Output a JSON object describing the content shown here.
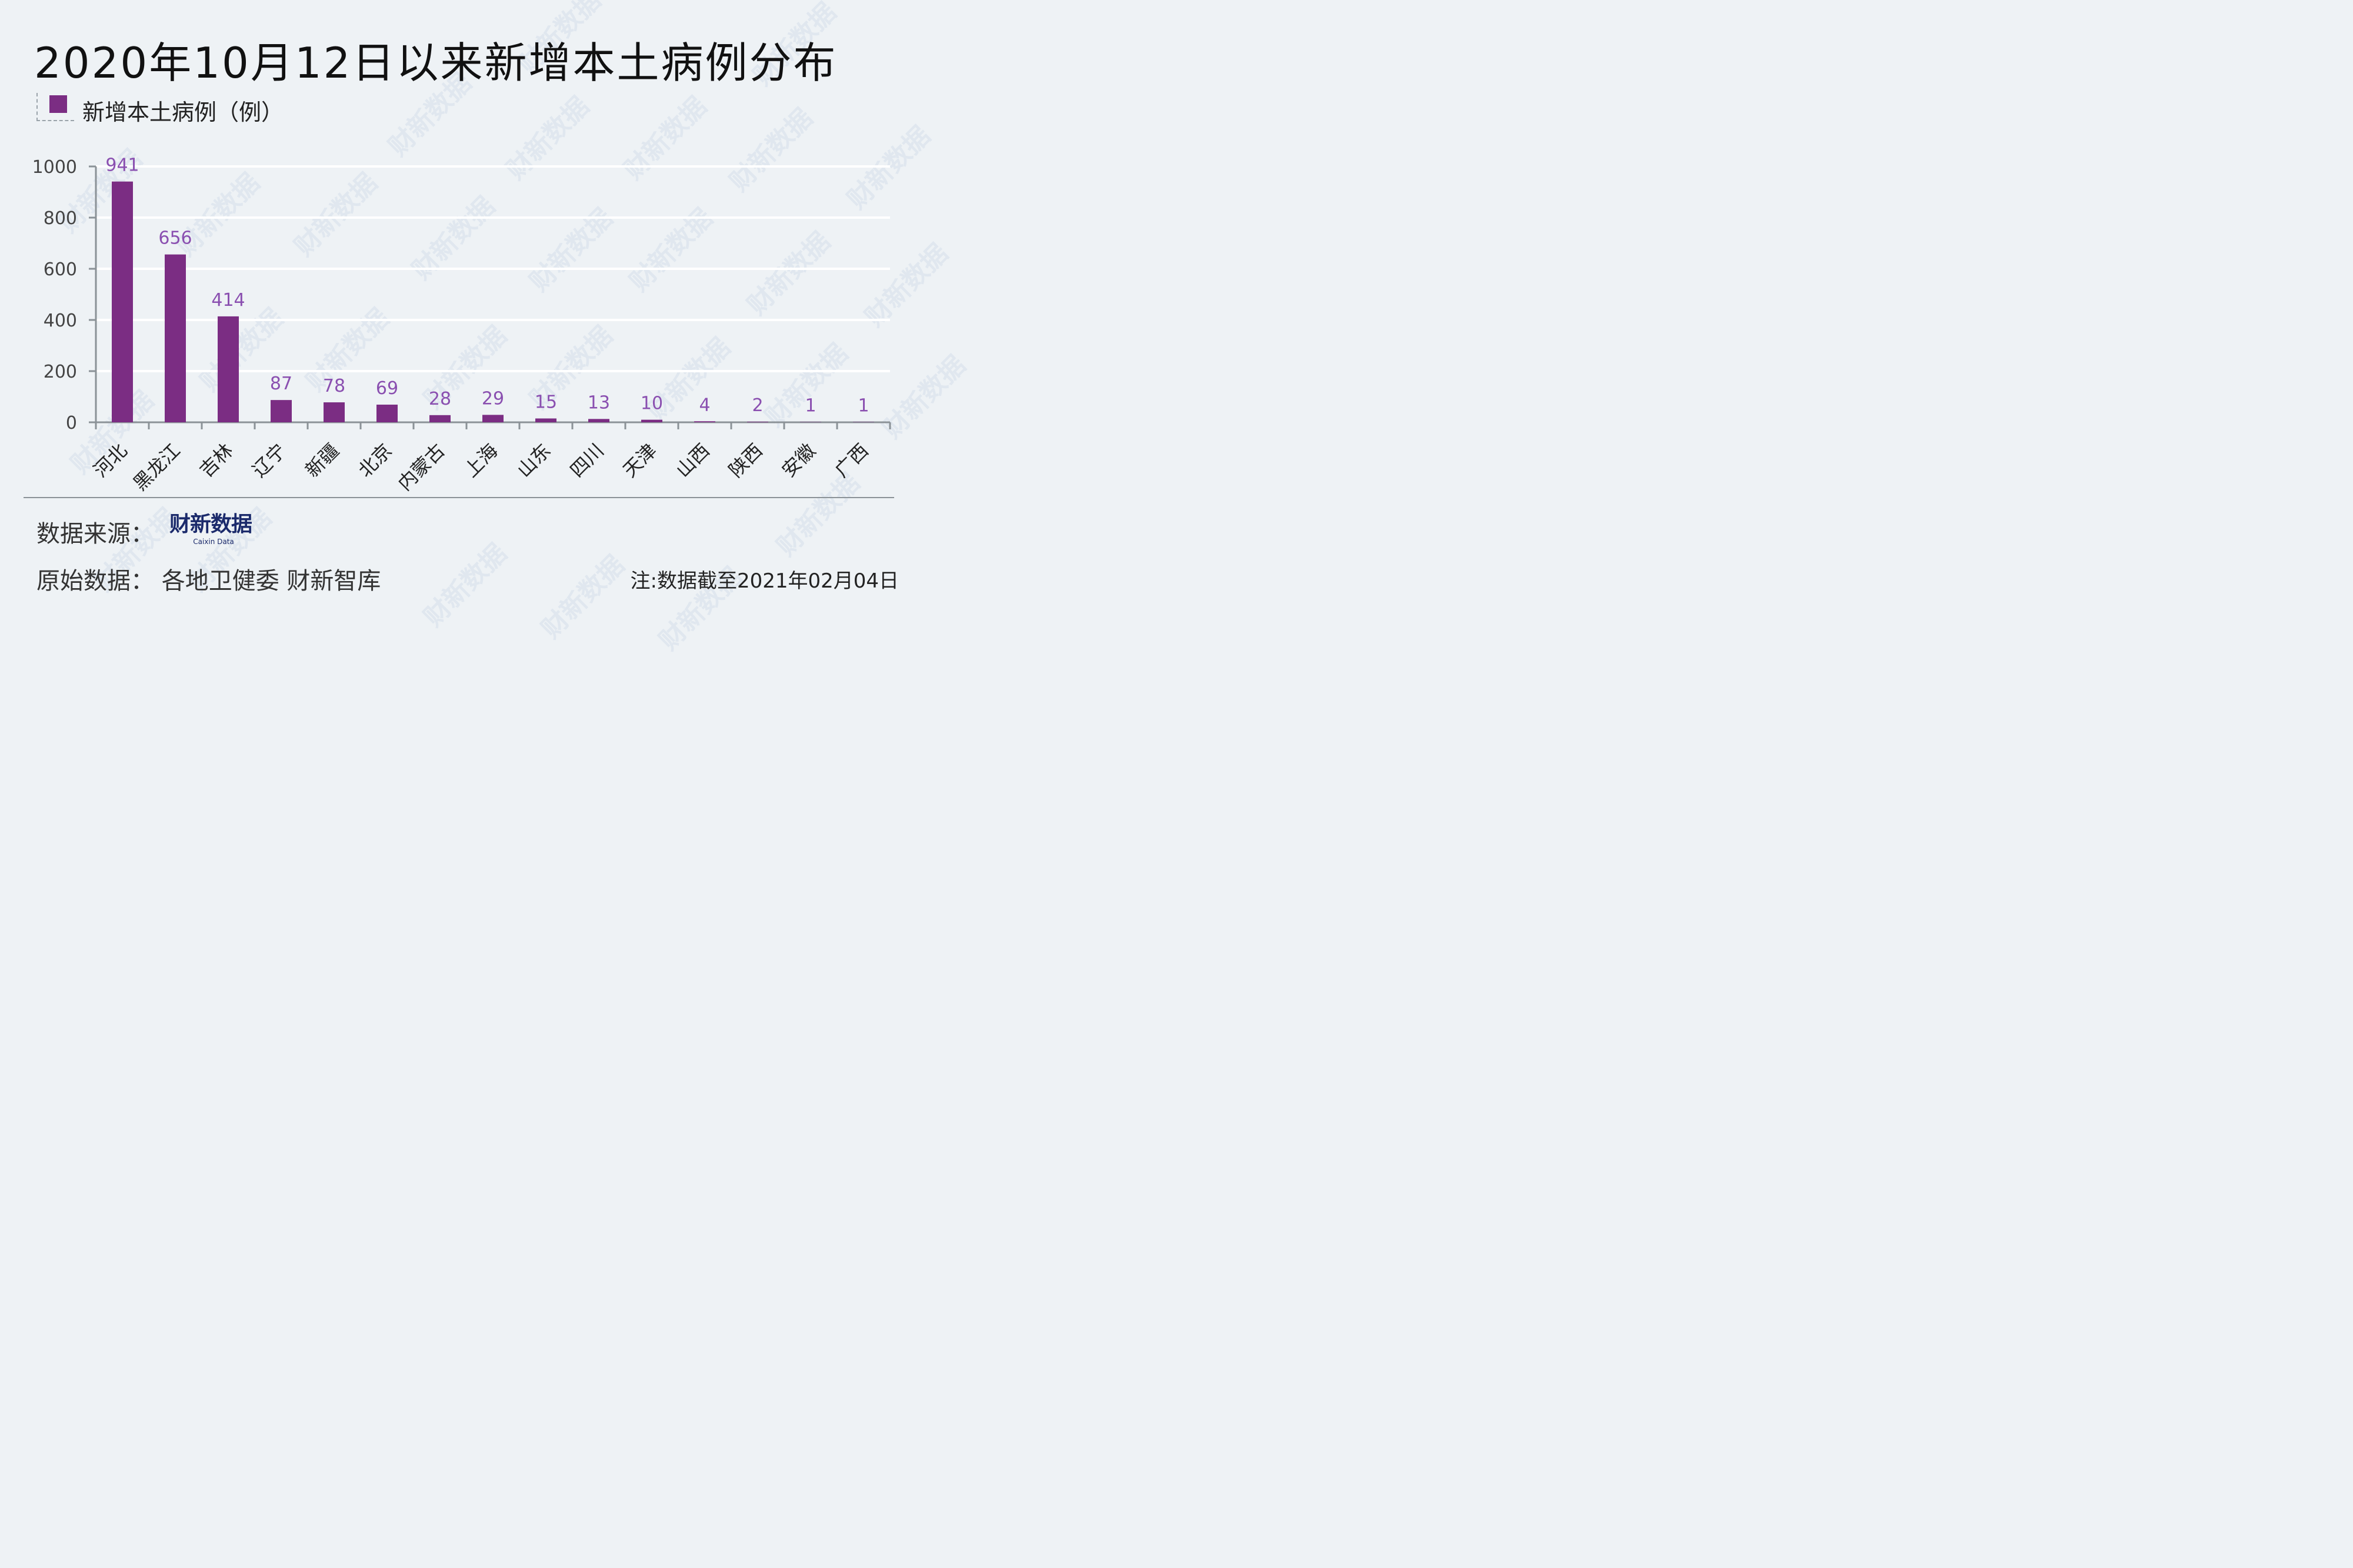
{
  "title": "2020年10月12日以来新增本土病例分布",
  "legend": {
    "label": "新增本土病例（例）"
  },
  "colors": {
    "bar": "#7b2d83",
    "data_label": "#8a4fb0",
    "grid": "#ffffff",
    "axis": "#8b9297",
    "tick_text": "#444444"
  },
  "chart_data": {
    "type": "bar",
    "categories": [
      "河北",
      "黑龙江",
      "吉林",
      "辽宁",
      "新疆",
      "北京",
      "内蒙古",
      "上海",
      "山东",
      "四川",
      "天津",
      "山西",
      "陕西",
      "安徽",
      "广西"
    ],
    "series": [
      {
        "name": "新增本土病例（例）",
        "values": [
          941,
          656,
          414,
          87,
          78,
          69,
          28,
          29,
          15,
          13,
          10,
          4,
          2,
          1,
          1
        ]
      }
    ],
    "yticks": [
      "0",
      "200",
      "400",
      "600",
      "800",
      "1000"
    ],
    "ylim": [
      0,
      1000
    ],
    "grid": true,
    "legend_position": "top-left"
  },
  "footer": {
    "source_label": "数据来源：",
    "logo_text": "财新数据",
    "logo_sub": "Caixin Data",
    "origin_label": "原始数据：  各地卫健委  财新智库",
    "note": "注:数据截至2021年02月04日"
  },
  "watermark_text": "财新数据"
}
